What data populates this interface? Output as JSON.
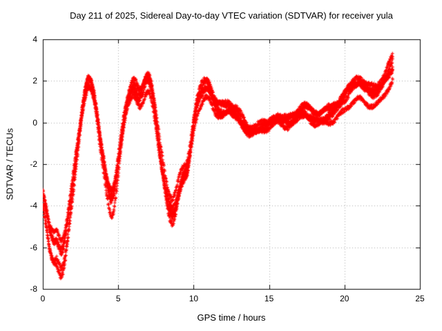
{
  "title": "Day 211 of 2025, Sidereal Day-to-day VTEC variation (SDTVAR) for receiver yula",
  "xlabel": "GPS time / hours",
  "ylabel": "SDTVAR / TECUs",
  "chart_data": {
    "type": "scatter",
    "marker": "plus",
    "color": "#ff0000",
    "grid": true,
    "grid_color": "#aaaaaa",
    "xlim": [
      0,
      25
    ],
    "ylim": [
      -8,
      4
    ],
    "xticks": [
      0,
      5,
      10,
      15,
      20,
      25
    ],
    "yticks": [
      -8,
      -6,
      -4,
      -2,
      0,
      2,
      4
    ],
    "num_traces": 5,
    "sample_interval_hours": 0.0167,
    "jitter": 0.1,
    "x_data_range": [
      0,
      23.2
    ],
    "base_curve": [
      [
        0.0,
        -3.8
      ],
      [
        0.15,
        -4.4
      ],
      [
        0.3,
        -5.1
      ],
      [
        0.45,
        -5.8
      ],
      [
        0.6,
        -6.2
      ],
      [
        0.75,
        -6.4
      ],
      [
        0.9,
        -6.3
      ],
      [
        1.05,
        -6.6
      ],
      [
        1.2,
        -6.9
      ],
      [
        1.35,
        -6.7
      ],
      [
        1.5,
        -6.1
      ],
      [
        1.65,
        -5.3
      ],
      [
        1.8,
        -4.4
      ],
      [
        2.0,
        -3.2
      ],
      [
        2.2,
        -1.9
      ],
      [
        2.4,
        -0.7
      ],
      [
        2.6,
        0.5
      ],
      [
        2.8,
        1.5
      ],
      [
        3.0,
        2.1
      ],
      [
        3.2,
        1.9
      ],
      [
        3.4,
        1.3
      ],
      [
        3.6,
        0.3
      ],
      [
        3.8,
        -0.9
      ],
      [
        4.0,
        -1.9
      ],
      [
        4.2,
        -2.9
      ],
      [
        4.4,
        -3.7
      ],
      [
        4.55,
        -4.0
      ],
      [
        4.7,
        -3.7
      ],
      [
        4.85,
        -3.0
      ],
      [
        5.0,
        -2.1
      ],
      [
        5.2,
        -0.9
      ],
      [
        5.4,
        0.2
      ],
      [
        5.6,
        1.0
      ],
      [
        5.8,
        1.5
      ],
      [
        6.0,
        1.8
      ],
      [
        6.2,
        1.6
      ],
      [
        6.4,
        1.3
      ],
      [
        6.6,
        1.5
      ],
      [
        6.8,
        2.0
      ],
      [
        7.0,
        2.2
      ],
      [
        7.2,
        1.7
      ],
      [
        7.4,
        0.7
      ],
      [
        7.6,
        -0.5
      ],
      [
        7.8,
        -1.7
      ],
      [
        8.0,
        -2.7
      ],
      [
        8.2,
        -3.6
      ],
      [
        8.4,
        -4.3
      ],
      [
        8.6,
        -4.6
      ],
      [
        8.8,
        -4.2
      ],
      [
        9.0,
        -3.5
      ],
      [
        9.2,
        -2.9
      ],
      [
        9.4,
        -2.6
      ],
      [
        9.6,
        -2.3
      ],
      [
        9.8,
        -1.3
      ],
      [
        10.0,
        -0.1
      ],
      [
        10.2,
        0.8
      ],
      [
        10.4,
        1.3
      ],
      [
        10.6,
        1.6
      ],
      [
        10.8,
        1.8
      ],
      [
        11.0,
        1.7
      ],
      [
        11.2,
        1.3
      ],
      [
        11.4,
        0.9
      ],
      [
        11.6,
        0.7
      ],
      [
        11.8,
        0.6
      ],
      [
        12.0,
        0.6
      ],
      [
        12.3,
        0.7
      ],
      [
        12.6,
        0.6
      ],
      [
        12.9,
        0.4
      ],
      [
        13.2,
        0.0
      ],
      [
        13.5,
        -0.4
      ],
      [
        13.8,
        -0.5
      ],
      [
        14.1,
        -0.4
      ],
      [
        14.4,
        -0.3
      ],
      [
        14.7,
        -0.2
      ],
      [
        15.0,
        -0.1
      ],
      [
        15.3,
        0.1
      ],
      [
        15.6,
        0.2
      ],
      [
        15.9,
        0.1
      ],
      [
        16.2,
        0.0
      ],
      [
        16.5,
        0.1
      ],
      [
        16.8,
        0.3
      ],
      [
        17.1,
        0.5
      ],
      [
        17.4,
        0.6
      ],
      [
        17.7,
        0.4
      ],
      [
        18.0,
        0.2
      ],
      [
        18.3,
        0.2
      ],
      [
        18.6,
        0.3
      ],
      [
        18.9,
        0.4
      ],
      [
        19.2,
        0.5
      ],
      [
        19.5,
        0.7
      ],
      [
        19.8,
        1.0
      ],
      [
        20.1,
        1.3
      ],
      [
        20.4,
        1.6
      ],
      [
        20.7,
        1.8
      ],
      [
        21.0,
        1.9
      ],
      [
        21.3,
        1.7
      ],
      [
        21.6,
        1.5
      ],
      [
        21.9,
        1.4
      ],
      [
        22.2,
        1.5
      ],
      [
        22.5,
        1.8
      ],
      [
        22.8,
        2.2
      ],
      [
        23.0,
        2.5
      ],
      [
        23.2,
        2.8
      ]
    ]
  }
}
